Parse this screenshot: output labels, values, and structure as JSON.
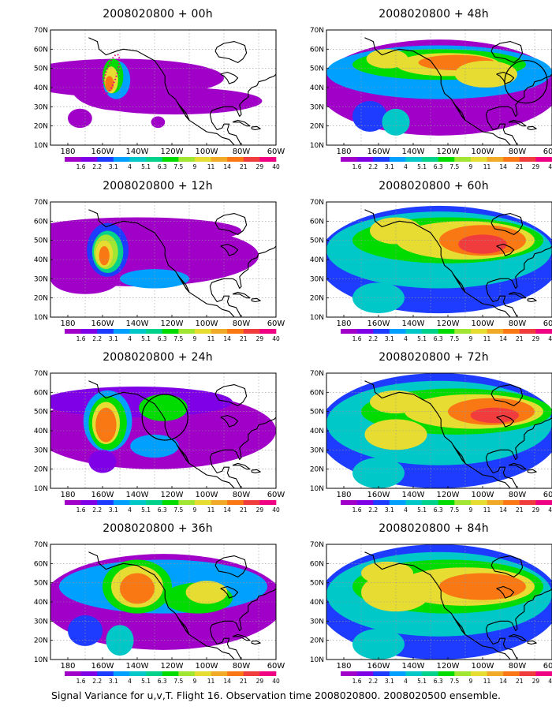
{
  "figure": {
    "caption": "Signal Variance for u,v,T. Flight 16. Observation time 2008020800. 2008020500 ensemble.",
    "lat_labels": [
      "70N",
      "60N",
      "50N",
      "40N",
      "30N",
      "20N",
      "10N"
    ],
    "lon_labels": [
      "180",
      "160W",
      "140W",
      "120W",
      "100W",
      "80W",
      "60W"
    ],
    "colorbar": {
      "labels": [
        "1.6",
        "2.2",
        "3.1",
        "4",
        "5.1",
        "6.3",
        "7.5",
        "9",
        "11",
        "14",
        "21",
        "29",
        "40"
      ],
      "colors": [
        "#ffffff",
        "#a000c8",
        "#7f00e6",
        "#1e3cff",
        "#00a0ff",
        "#00c8c8",
        "#00d28c",
        "#00dc00",
        "#a0e632",
        "#e6dc32",
        "#f0aa28",
        "#fa7814",
        "#f03c3c",
        "#f00082"
      ]
    },
    "panels": [
      {
        "id": "p00",
        "title": "2008020800 + 00h",
        "lead_h": 0
      },
      {
        "id": "p48",
        "title": "2008020800 + 48h",
        "lead_h": 48
      },
      {
        "id": "p12",
        "title": "2008020800 + 12h",
        "lead_h": 12
      },
      {
        "id": "p60",
        "title": "2008020800 + 60h",
        "lead_h": 60
      },
      {
        "id": "p24",
        "title": "2008020800 + 24h",
        "lead_h": 24
      },
      {
        "id": "p72",
        "title": "2008020800 + 72h",
        "lead_h": 72
      },
      {
        "id": "p36",
        "title": "2008020800 + 36h",
        "lead_h": 36
      },
      {
        "id": "p84",
        "title": "2008020800 + 84h",
        "lead_h": 84
      }
    ]
  }
}
